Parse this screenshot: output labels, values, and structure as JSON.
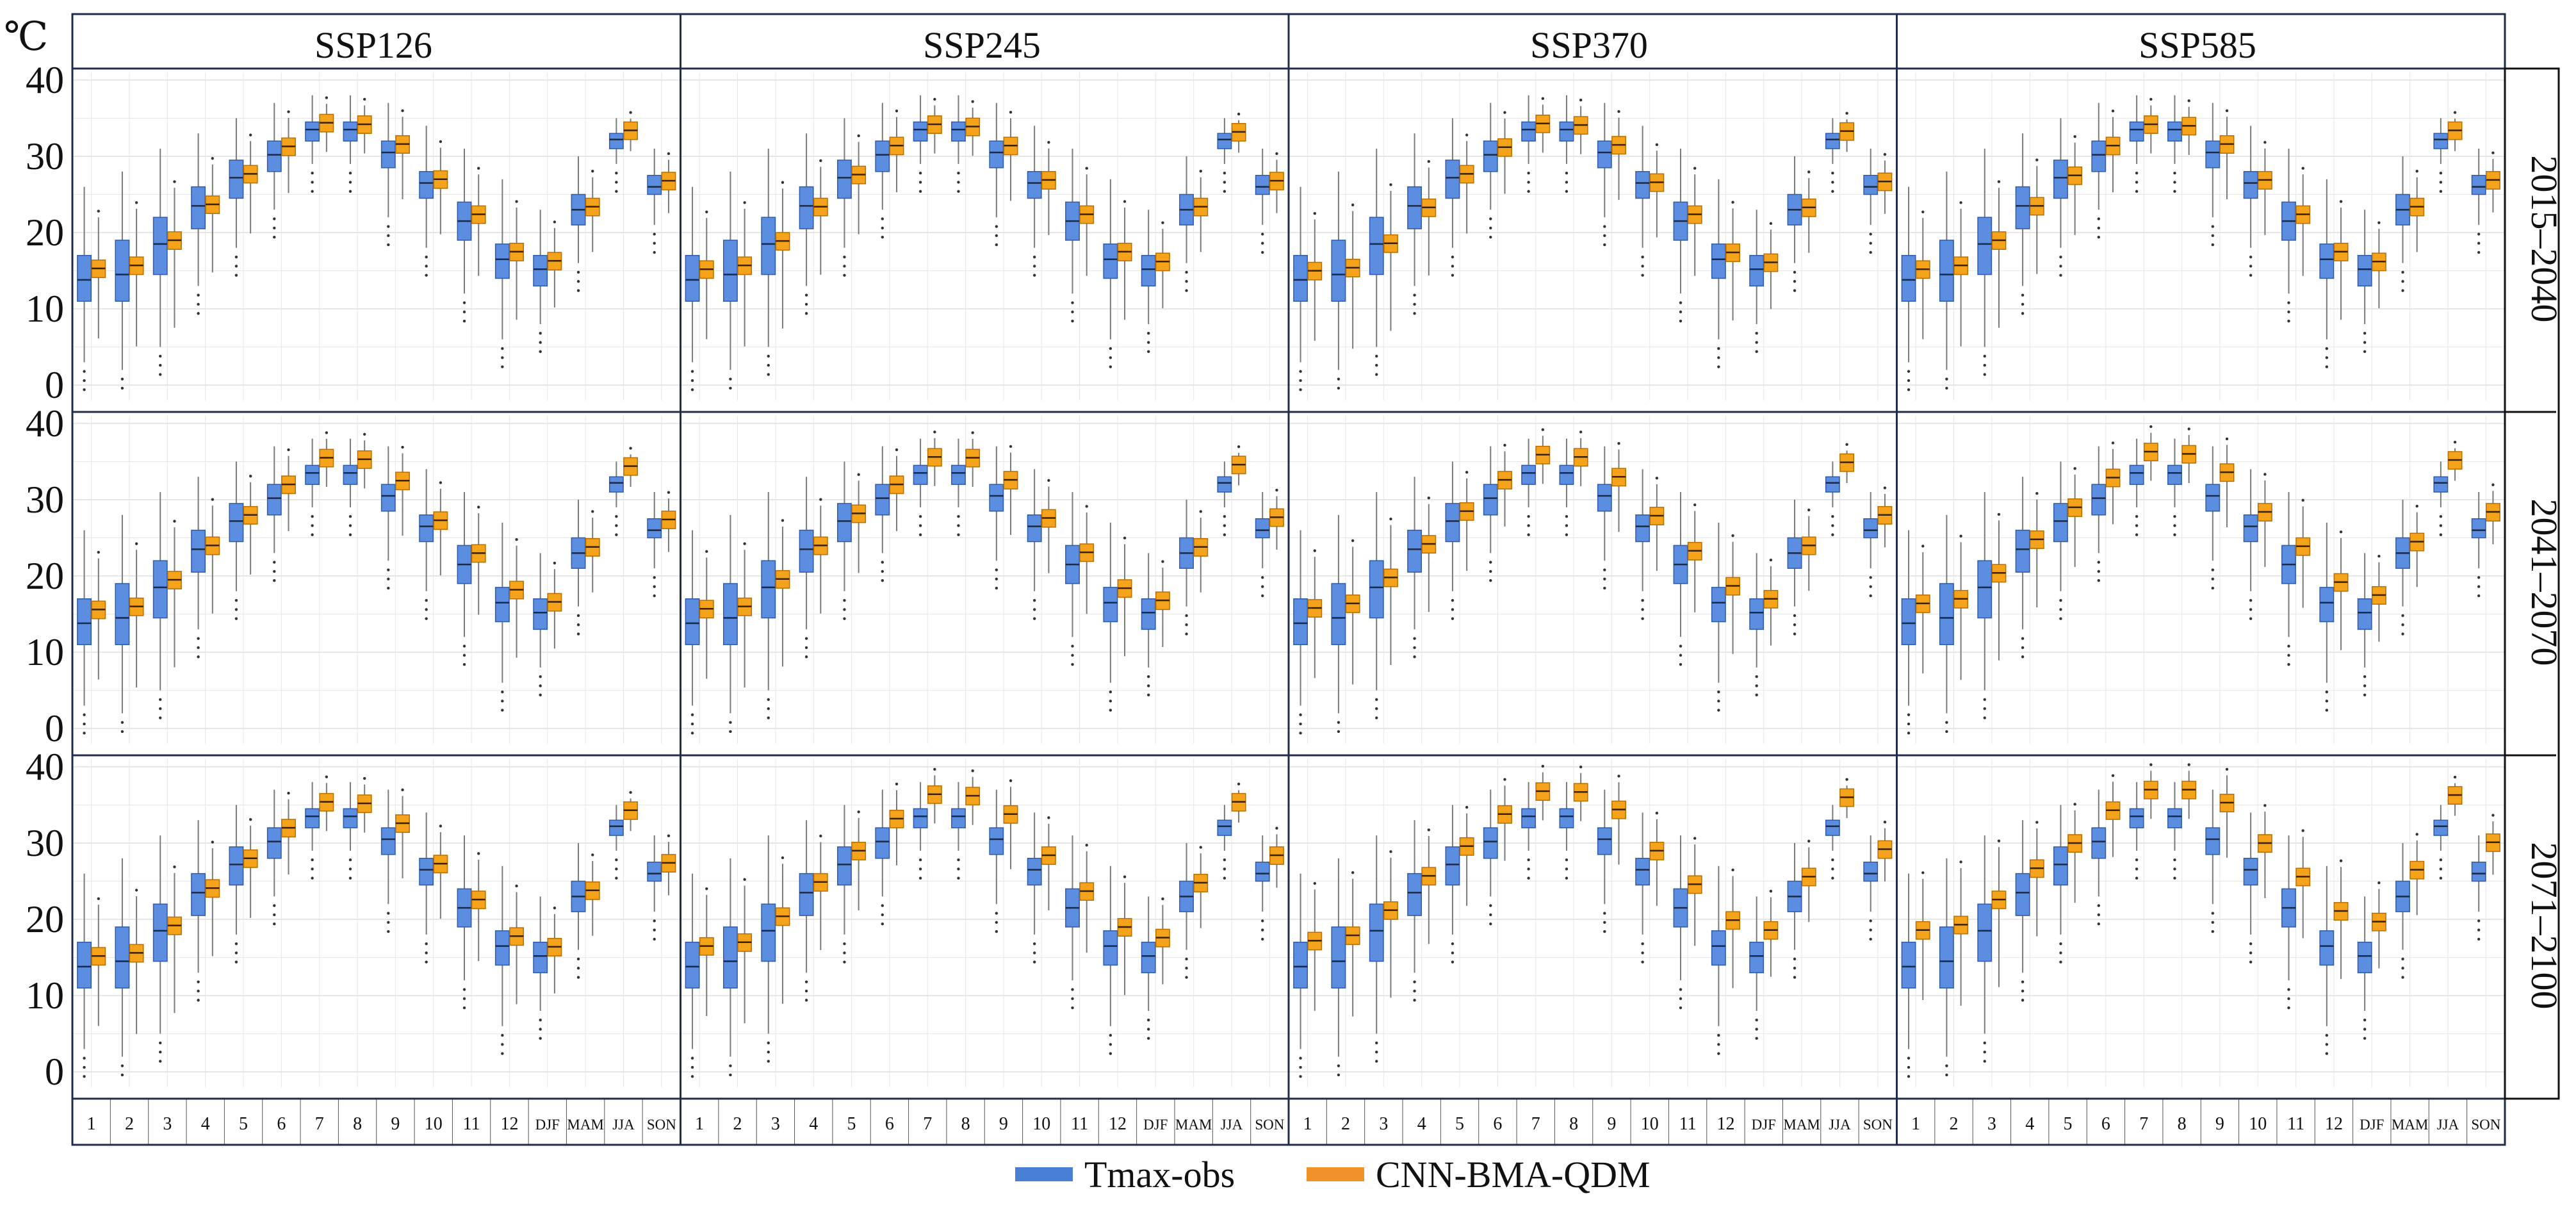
{
  "chart_data": {
    "type": "boxplot",
    "unit_label": "℃",
    "column_headers": [
      "SSP126",
      "SSP245",
      "SSP370",
      "SSP585"
    ],
    "row_labels": [
      "2015–2040",
      "2041–2070",
      "2071–2100"
    ],
    "categories": [
      "1",
      "2",
      "3",
      "4",
      "5",
      "6",
      "7",
      "8",
      "9",
      "10",
      "11",
      "12",
      "DJF",
      "MAM",
      "JJA",
      "SON"
    ],
    "y_ticks": [
      "0",
      "10",
      "20",
      "30",
      "40"
    ],
    "ylim": [
      -2,
      41
    ],
    "legend": [
      {
        "name": "Tmax-obs",
        "color": "#4a7fd6"
      },
      {
        "name": "CNN-BMA-QDM",
        "color": "#f0932b"
      }
    ],
    "colors": {
      "obs_fill": "#5b8de0",
      "obs_edge": "#2f5ba8",
      "model_fill": "#f5a31a",
      "model_edge": "#b86e00",
      "grid": "#e6e6e6",
      "frame": "#1f2d4d",
      "whisker": "#7a7a7a"
    },
    "observed": {
      "name": "Tmax-obs",
      "median": [
        13.8,
        14.5,
        18.5,
        23.5,
        27.2,
        30.2,
        33.5,
        33.5,
        30.5,
        26.5,
        21.5,
        16.5,
        15.2,
        23.0,
        32.2,
        26.0
      ],
      "q1": [
        11.0,
        11.0,
        14.5,
        20.5,
        24.5,
        28.0,
        32.0,
        32.0,
        28.5,
        24.5,
        19.0,
        14.0,
        13.0,
        21.0,
        31.0,
        25.0
      ],
      "q3": [
        17.0,
        19.0,
        22.0,
        26.0,
        29.5,
        32.0,
        34.5,
        34.5,
        32.0,
        28.0,
        24.0,
        18.5,
        17.0,
        25.0,
        33.0,
        27.5
      ],
      "min": [
        3.0,
        2.0,
        5.0,
        13.0,
        18.0,
        23.0,
        29.0,
        29.0,
        22.0,
        18.0,
        12.0,
        6.0,
        8.0,
        16.0,
        29.0,
        21.0
      ],
      "max": [
        26.0,
        28.0,
        31.0,
        33.0,
        35.0,
        37.0,
        38.0,
        38.0,
        37.0,
        34.0,
        31.0,
        27.0,
        23.0,
        30.0,
        35.0,
        31.0
      ]
    },
    "model": {
      "name": "CNN-BMA-QDM",
      "rows": [
        [
          {
            "median": [
              15.3,
              15.7,
              19.0,
              23.7,
              27.7,
              31.3,
              34.4,
              34.2,
              31.6,
              27.0,
              22.4,
              17.5,
              16.3,
              23.4,
              33.4,
              26.8
            ]
          },
          {
            "median": [
              15.2,
              15.7,
              18.9,
              23.4,
              27.6,
              31.4,
              34.2,
              33.9,
              31.4,
              26.9,
              22.4,
              17.5,
              16.2,
              23.4,
              33.2,
              26.8
            ]
          },
          {
            "median": [
              15.0,
              15.4,
              18.6,
              23.3,
              27.7,
              31.2,
              34.3,
              34.1,
              31.5,
              26.6,
              22.4,
              17.4,
              16.1,
              23.3,
              33.3,
              26.7
            ]
          },
          {
            "median": [
              15.2,
              15.7,
              19.0,
              23.5,
              27.5,
              31.4,
              34.2,
              34.0,
              31.6,
              26.9,
              22.4,
              17.5,
              16.2,
              23.4,
              33.4,
              26.9
            ]
          }
        ],
        [
          {
            "median": [
              15.6,
              16.0,
              19.5,
              24.0,
              28.0,
              32.0,
              35.5,
              35.3,
              32.5,
              27.3,
              23.0,
              18.2,
              16.6,
              23.8,
              34.4,
              27.4
            ]
          },
          {
            "median": [
              15.7,
              16.0,
              19.6,
              24.0,
              28.2,
              32.0,
              35.6,
              35.5,
              32.6,
              27.6,
              23.1,
              18.4,
              16.8,
              23.8,
              34.6,
              27.7
            ]
          },
          {
            "median": [
              15.8,
              16.4,
              19.8,
              24.2,
              28.5,
              32.6,
              35.9,
              35.6,
              33.0,
              27.9,
              23.3,
              18.7,
              17.0,
              24.0,
              34.9,
              28.0
            ]
          },
          {
            "median": [
              16.4,
              17.0,
              20.4,
              24.8,
              29.0,
              32.9,
              36.3,
              36.0,
              33.6,
              28.4,
              23.9,
              19.2,
              17.5,
              24.5,
              35.2,
              28.4
            ]
          }
        ],
        [
          {
            "median": [
              15.2,
              15.6,
              19.2,
              24.1,
              28.0,
              32.0,
              35.4,
              35.2,
              32.6,
              27.3,
              22.6,
              17.8,
              16.4,
              23.8,
              34.3,
              27.4
            ]
          },
          {
            "median": [
              16.5,
              17.0,
              20.4,
              24.9,
              29.0,
              33.2,
              36.4,
              36.2,
              33.8,
              28.4,
              23.7,
              19.0,
              17.6,
              24.8,
              35.4,
              28.4
            ]
          },
          {
            "median": [
              17.2,
              17.9,
              21.2,
              25.7,
              29.6,
              33.8,
              36.8,
              36.7,
              34.4,
              29.0,
              24.6,
              19.9,
              18.6,
              25.6,
              36.0,
              29.2
            ]
          },
          {
            "median": [
              18.6,
              19.3,
              22.6,
              26.7,
              30.0,
              34.3,
              37.0,
              37.0,
              35.3,
              30.0,
              25.6,
              21.1,
              19.7,
              26.5,
              36.3,
              30.1
            ]
          }
        ]
      ]
    }
  }
}
